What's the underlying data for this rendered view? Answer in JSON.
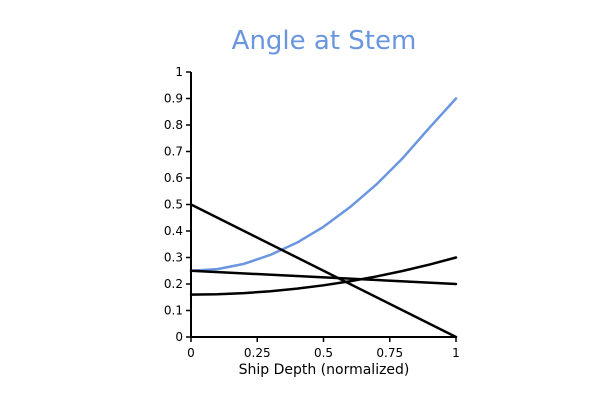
{
  "chart_data": {
    "type": "line",
    "title": "Angle at Stem",
    "xlabel": "Ship Depth (normalized)",
    "ylabel": "",
    "xlim": [
      0,
      1
    ],
    "ylim": [
      0,
      1
    ],
    "x_ticks": [
      "0",
      "0.25",
      "0.5",
      "0.75",
      "1"
    ],
    "y_ticks": [
      "0",
      "0.1",
      "0.2",
      "0.3",
      "0.4",
      "0.5",
      "0.6",
      "0.7",
      "0.8",
      "0.9",
      "1"
    ],
    "grid": false,
    "legend": "none",
    "series": [
      {
        "color": "#6a96e0",
        "x": [
          0,
          0.1,
          0.2,
          0.3,
          0.4,
          0.5,
          0.6,
          0.7,
          0.8,
          0.9,
          1
        ],
        "y": [
          0.25,
          0.256,
          0.276,
          0.31,
          0.356,
          0.416,
          0.49,
          0.576,
          0.676,
          0.79,
          0.9
        ]
      },
      {
        "color": "#000000",
        "x": [
          0,
          1
        ],
        "y": [
          0.5,
          0
        ]
      },
      {
        "color": "#000000",
        "x": [
          0,
          1
        ],
        "y": [
          0.25,
          0.2
        ]
      },
      {
        "color": "#000000",
        "x": [
          0,
          0.1,
          0.2,
          0.3,
          0.4,
          0.5,
          0.6,
          0.7,
          0.8,
          0.9,
          1
        ],
        "y": [
          0.16,
          0.1614,
          0.1656,
          0.1726,
          0.1824,
          0.195,
          0.2104,
          0.2286,
          0.2496,
          0.2734,
          0.3
        ]
      }
    ]
  },
  "colors": {
    "title": "#6a96e0",
    "axis": "#000000"
  }
}
